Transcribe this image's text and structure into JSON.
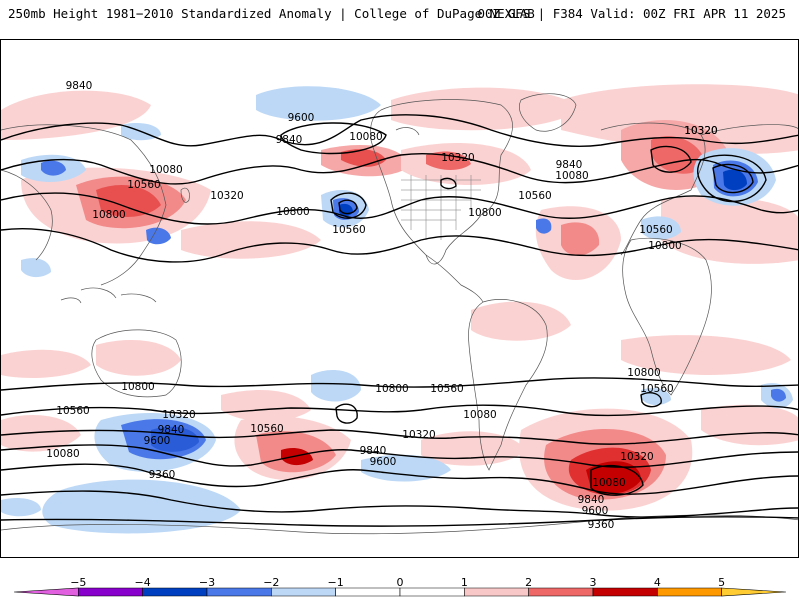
{
  "header": {
    "left_title": "250mb Height 1981−2010 Standardized Anomaly | College of DuPage NEXLAB",
    "right_title": "00Z GFS | F384 Valid: 00Z FRI APR 11 2025"
  },
  "map": {
    "contour_labels": [
      {
        "text": "9840"
      },
      {
        "text": "9600"
      },
      {
        "text": "9840"
      },
      {
        "text": "10080"
      },
      {
        "text": "10320"
      },
      {
        "text": "10320"
      },
      {
        "text": "10080"
      },
      {
        "text": "10560"
      },
      {
        "text": "10320"
      },
      {
        "text": "10800"
      },
      {
        "text": "10800"
      },
      {
        "text": "10560"
      },
      {
        "text": "10800"
      },
      {
        "text": "10560"
      },
      {
        "text": "9840"
      },
      {
        "text": "10080"
      },
      {
        "text": "10320"
      },
      {
        "text": "10560"
      },
      {
        "text": "10800"
      },
      {
        "text": "10800"
      },
      {
        "text": "10800"
      },
      {
        "text": "10560"
      },
      {
        "text": "10800"
      },
      {
        "text": "10560"
      },
      {
        "text": "10560"
      },
      {
        "text": "10320"
      },
      {
        "text": "10080"
      },
      {
        "text": "10560"
      },
      {
        "text": "10320"
      },
      {
        "text": "9840"
      },
      {
        "text": "9600"
      },
      {
        "text": "10080"
      },
      {
        "text": "9360"
      },
      {
        "text": "10320"
      },
      {
        "text": "10080"
      },
      {
        "text": "9840"
      },
      {
        "text": "9600"
      },
      {
        "text": "9360"
      },
      {
        "text": "9840"
      },
      {
        "text": "9600"
      }
    ]
  },
  "colorbar": {
    "ticks": [
      "−5",
      "−4",
      "−3",
      "−2",
      "−1",
      "0",
      "1",
      "2",
      "3",
      "4",
      "5"
    ],
    "colors": [
      "#e060e0",
      "#8800cc",
      "#0040c0",
      "#4a78e8",
      "#bcd8f6",
      "#ffffff",
      "#ffffff",
      "#f8c8c8",
      "#ee6868",
      "#c40000",
      "#ff9900",
      "#ffcc33"
    ]
  }
}
